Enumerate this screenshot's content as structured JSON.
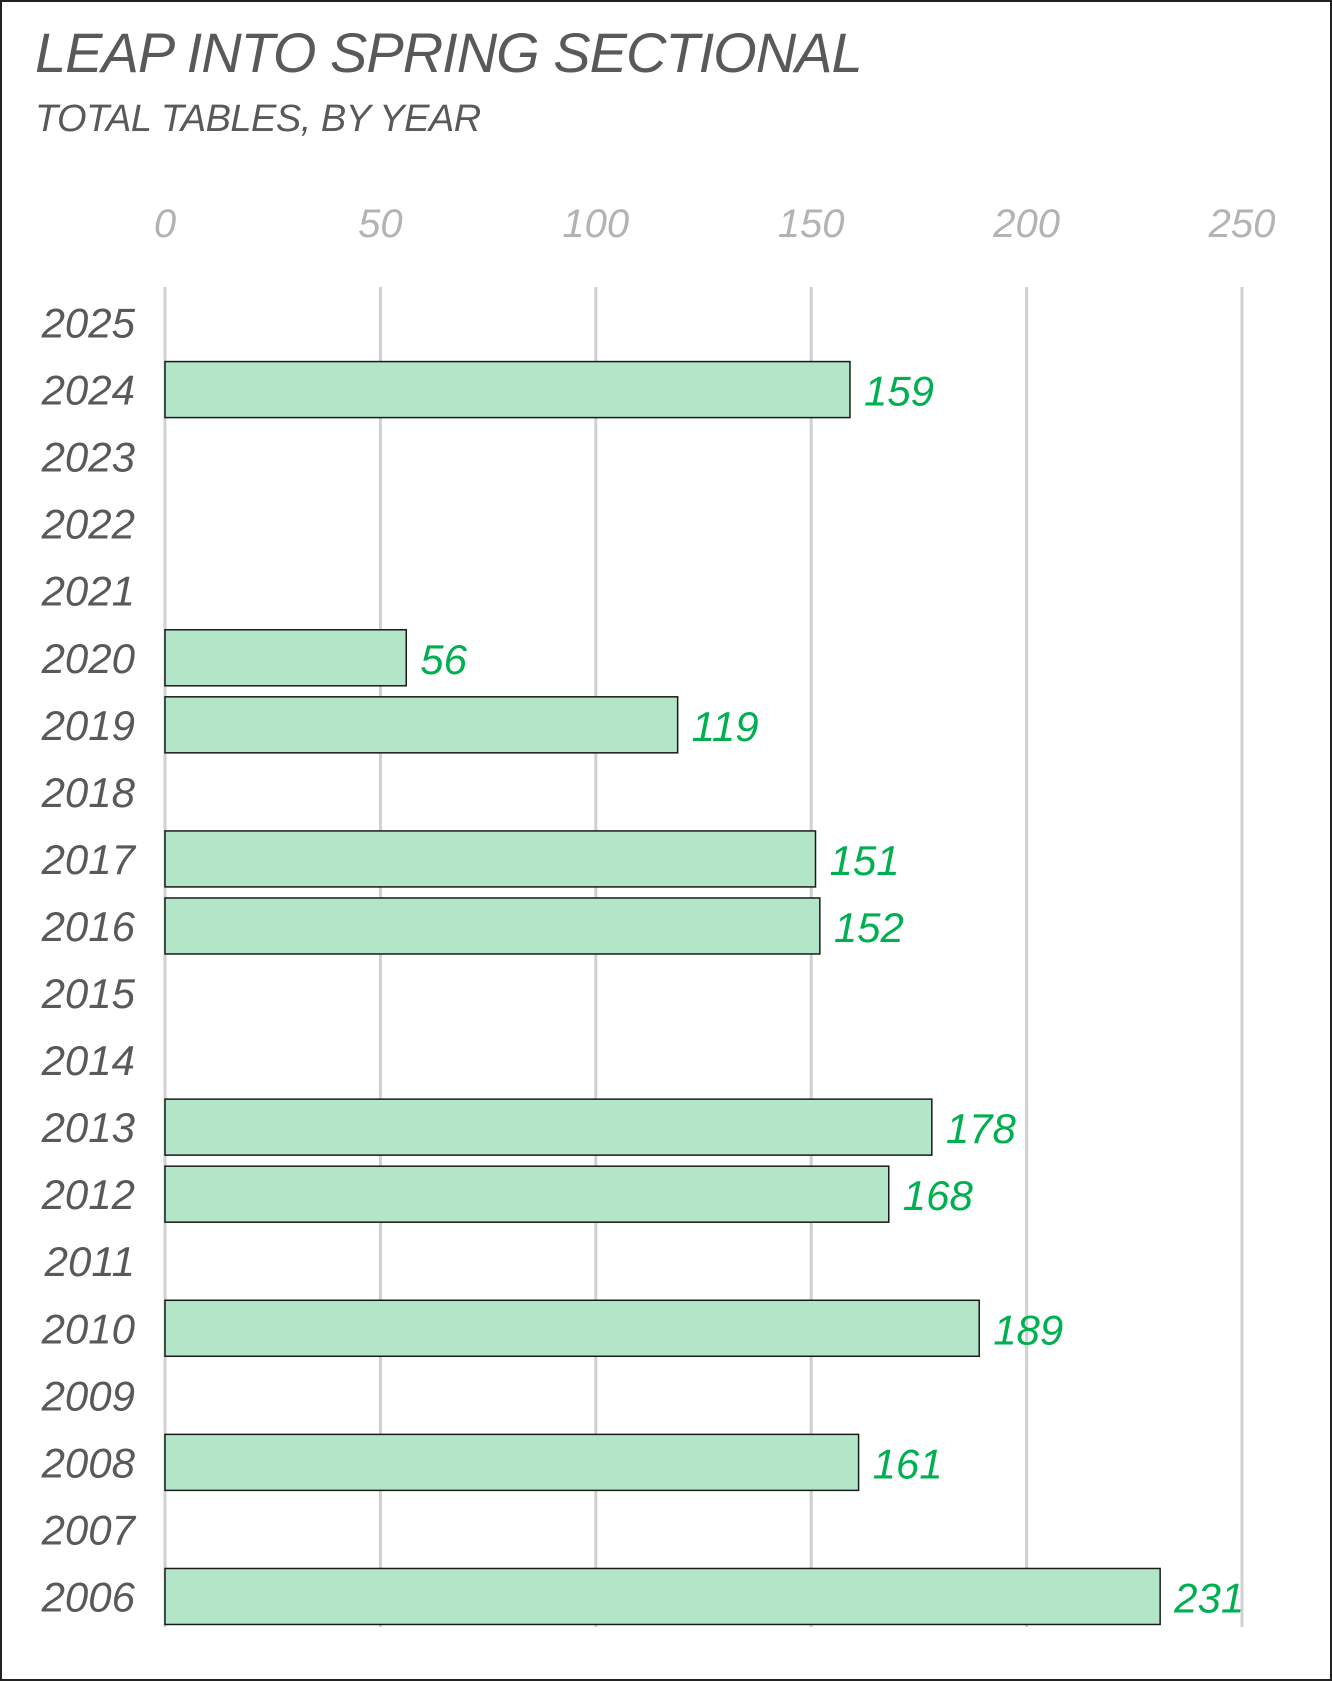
{
  "chart_data": {
    "type": "bar",
    "orientation": "horizontal",
    "title": "LEAP INTO SPRING SECTIONAL",
    "subtitle": "TOTAL TABLES, BY YEAR",
    "xlim": [
      0,
      250
    ],
    "x_ticks": [
      "0",
      "50",
      "100",
      "150",
      "200",
      "250"
    ],
    "x_tick_values": [
      0,
      50,
      100,
      150,
      200,
      250
    ],
    "x_axis_position": "top",
    "grid": true,
    "categories": [
      "2025",
      "2024",
      "2023",
      "2022",
      "2021",
      "2020",
      "2019",
      "2018",
      "2017",
      "2016",
      "2015",
      "2014",
      "2013",
      "2012",
      "2011",
      "2010",
      "2009",
      "2008",
      "2007",
      "2006"
    ],
    "values": [
      null,
      159,
      null,
      null,
      null,
      56,
      119,
      null,
      151,
      152,
      null,
      null,
      178,
      168,
      null,
      189,
      null,
      161,
      null,
      231
    ],
    "colors": {
      "bar_fill": "#b3e6c9",
      "bar_stroke": "#1a1a1a",
      "value_label": "#00b050",
      "grid": "#d0d0d0"
    }
  }
}
